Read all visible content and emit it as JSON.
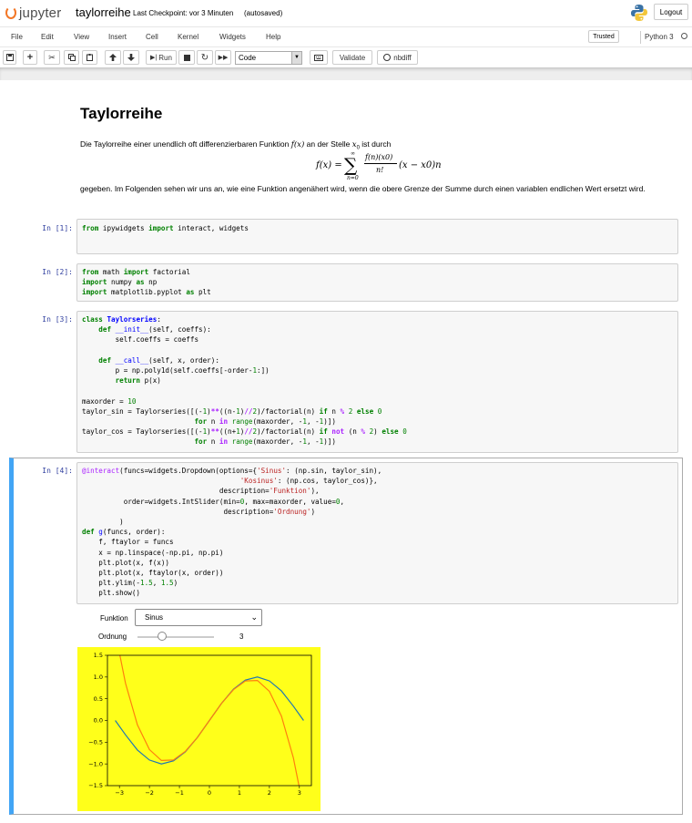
{
  "header": {
    "logo_text": "jupyter",
    "notebook_title": "taylorreihe",
    "checkpoint": "Last Checkpoint: vor 3 Minuten",
    "autosave": "(autosaved)",
    "logout_label": "Logout"
  },
  "menubar": {
    "items": [
      "File",
      "Edit",
      "View",
      "Insert",
      "Cell",
      "Kernel",
      "Widgets",
      "Help"
    ],
    "trusted_label": "Trusted",
    "kernel_name": "Python 3"
  },
  "toolbar": {
    "run_label": "Run",
    "cell_type": "Code",
    "validate_label": "Validate",
    "nbdiff_label": "nbdiff"
  },
  "markdown": {
    "title": "Taylorreihe",
    "intro_before_fx": "Die Taylorreihe einer unendlich oft differenzierbaren Funktion",
    "fx": "f(x)",
    "intro_middle": "an der Stelle",
    "x0": "x",
    "x0_sub": "0",
    "intro_after": "ist durch",
    "formula": {
      "lhs": "f(x) =",
      "sum_top": "∞",
      "sum_bottom": "n=0",
      "numerator": "f(n)(x0)",
      "denominator": "n!",
      "tail": "(x − x0)n"
    },
    "after_text": "gegeben. Im Folgenden sehen wir uns an, wie eine Funktion angenähert wird, wenn die obere Grenze der Summe durch einen variablen endlichen Wert ersetzt wird."
  },
  "cells": [
    {
      "prompt": "In [1]:"
    },
    {
      "prompt": "In [2]:"
    },
    {
      "prompt": "In [3]:"
    },
    {
      "prompt": "In [4]:"
    }
  ],
  "widgets": {
    "funktion_label": "Funktion",
    "funktion_value": "Sinus",
    "ordnung_label": "Ordnung",
    "ordnung_value": "3",
    "ordnung_min": 0,
    "ordnung_max": 10
  },
  "colors": {
    "plot_background": "#ffff1a",
    "sin_line": "#1f77b4",
    "taylor_line": "#ff7f0e",
    "active_cell_bar": "#42a5f5",
    "logo_orange": "#f37726"
  },
  "chart_data": {
    "type": "line",
    "title": "",
    "xlabel": "",
    "ylabel": "",
    "xlim": [
      -3.4,
      3.4
    ],
    "ylim": [
      -1.5,
      1.5
    ],
    "xticks": [
      -3,
      -2,
      -1,
      0,
      1,
      2,
      3
    ],
    "xtick_labels": [
      "−3",
      "−2",
      "−1",
      "0",
      "1",
      "2",
      "3"
    ],
    "yticks": [
      -1.5,
      -1.0,
      -0.5,
      0.0,
      0.5,
      1.0,
      1.5
    ],
    "ytick_labels": [
      "−1.5",
      "−1.0",
      "−0.5",
      "0.0",
      "0.5",
      "1.0",
      "1.5"
    ],
    "grid": false,
    "legend": "none",
    "series": [
      {
        "x": [
          -3.14,
          -2.8,
          -2.4,
          -2.0,
          -1.6,
          -1.2,
          -0.8,
          -0.4,
          0.0,
          0.4,
          0.8,
          1.2,
          1.6,
          2.0,
          2.4,
          2.8,
          3.14
        ],
        "y": [
          0.0,
          -0.33,
          -0.68,
          -0.91,
          -1.0,
          -0.93,
          -0.72,
          -0.39,
          0.0,
          0.39,
          0.72,
          0.93,
          1.0,
          0.91,
          0.68,
          0.33,
          0.0
        ]
      },
      {
        "x": [
          -3.14,
          -2.8,
          -2.4,
          -2.0,
          -1.6,
          -1.2,
          -0.8,
          -0.4,
          0.0,
          0.4,
          0.8,
          1.2,
          1.6,
          2.0,
          2.4,
          2.8,
          3.14
        ],
        "y": [
          2.03,
          0.86,
          -0.1,
          -0.67,
          -0.92,
          -0.91,
          -0.71,
          -0.39,
          0.0,
          0.39,
          0.71,
          0.91,
          0.92,
          0.67,
          0.1,
          -0.86,
          -2.03
        ]
      }
    ]
  }
}
